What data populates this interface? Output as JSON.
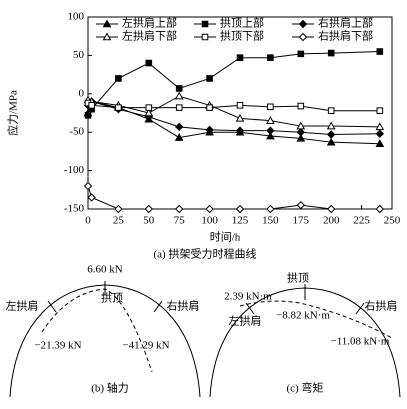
{
  "chart_data": {
    "type": "line",
    "y_label": "应力/MPa",
    "x_label": "时间/h",
    "caption": "(a) 拱架受力时程曲线",
    "x": [
      0,
      3,
      25,
      50,
      75,
      100,
      125,
      150,
      175,
      200,
      240
    ],
    "xlim": [
      0,
      250
    ],
    "xticks": [
      0,
      25,
      50,
      75,
      100,
      125,
      150,
      175,
      200,
      225,
      250
    ],
    "ylim": [
      -150,
      100
    ],
    "yticks": [
      100,
      50,
      0,
      -50,
      -100,
      -150
    ],
    "series": [
      {
        "name": "左拱肩上部",
        "color": "#000000",
        "marker": "triangle-filled",
        "values": [
          -25,
          -10,
          -18,
          -33,
          -57,
          -50,
          -50,
          -55,
          -58,
          -63,
          -65
        ]
      },
      {
        "name": "拱顶上部",
        "color": "#000000",
        "marker": "square-filled",
        "values": [
          -28,
          -20,
          20,
          40,
          7,
          20,
          47,
          47,
          52,
          53,
          55
        ]
      },
      {
        "name": "右拱肩上部",
        "color": "#000000",
        "marker": "diamond-filled",
        "values": [
          -15,
          -10,
          -20,
          -30,
          -43,
          -47,
          -48,
          -48,
          -50,
          -53,
          -52
        ]
      },
      {
        "name": "左拱肩下部",
        "color": "#000000",
        "marker": "triangle-open",
        "values": [
          -8,
          -10,
          -15,
          -25,
          -3,
          -15,
          -32,
          -35,
          -42,
          -42,
          -43
        ]
      },
      {
        "name": "拱顶下部",
        "color": "#000000",
        "marker": "square-open",
        "values": [
          -12,
          -15,
          -18,
          -18,
          -18,
          -18,
          -15,
          -17,
          -16,
          -22,
          -22
        ]
      },
      {
        "name": "右拱肩下部",
        "color": "#000000",
        "marker": "diamond-open",
        "values": [
          -120,
          -135,
          -150,
          -150,
          -150,
          -150,
          -150,
          -150,
          -145,
          -150,
          -150
        ]
      }
    ]
  },
  "diagrams": [
    {
      "caption": "(b) 轴力",
      "labels": [
        "6.60 kN",
        "拱顶",
        "左拱肩",
        "右拱肩",
        "−21.39 kN",
        "−41.29 kN"
      ]
    },
    {
      "caption": "(c) 弯矩",
      "labels": [
        "拱顶",
        "2.39 kN·m",
        "右拱肩",
        "左拱肩",
        "−8.82 kN·m",
        "−11.08 kN·m"
      ]
    }
  ]
}
